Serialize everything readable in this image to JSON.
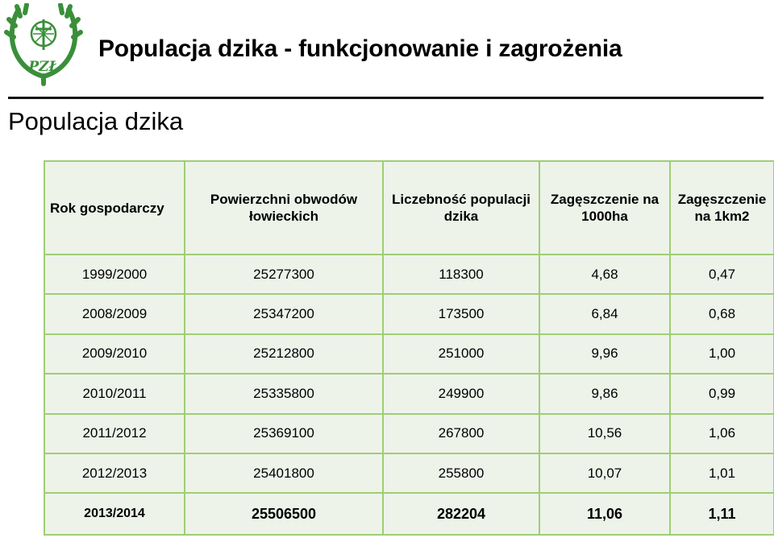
{
  "header": {
    "title": "Populacja dzika - funkcjonowanie i zagrożenia",
    "subtitle": "Populacja dzika",
    "logo_text": "PZŁ"
  },
  "colors": {
    "logo_green": "#3a8f3a",
    "table_border": "#9fce74",
    "table_fill": "#edf3e9"
  },
  "table": {
    "columns": [
      "Rok gospodarczy",
      "Powierzchni obwodów łowieckich",
      "Liczebność populacji dzika",
      "Zagęszczenie na 1000ha",
      "Zagęszczenie na 1km2"
    ],
    "rows": [
      [
        "1999/2000",
        "25277300",
        "118300",
        "4,68",
        "0,47"
      ],
      [
        "2008/2009",
        "25347200",
        "173500",
        "6,84",
        "0,68"
      ],
      [
        "2009/2010",
        "25212800",
        "251000",
        "9,96",
        "1,00"
      ],
      [
        "2010/2011",
        "25335800",
        "249900",
        "9,86",
        "0,99"
      ],
      [
        "2011/2012",
        "25369100",
        "267800",
        "10,56",
        "1,06"
      ],
      [
        "2012/2013",
        "25401800",
        "255800",
        "10,07",
        "1,01"
      ],
      [
        "2013/2014",
        "25506500",
        "282204",
        "11,06",
        "1,11"
      ]
    ]
  }
}
